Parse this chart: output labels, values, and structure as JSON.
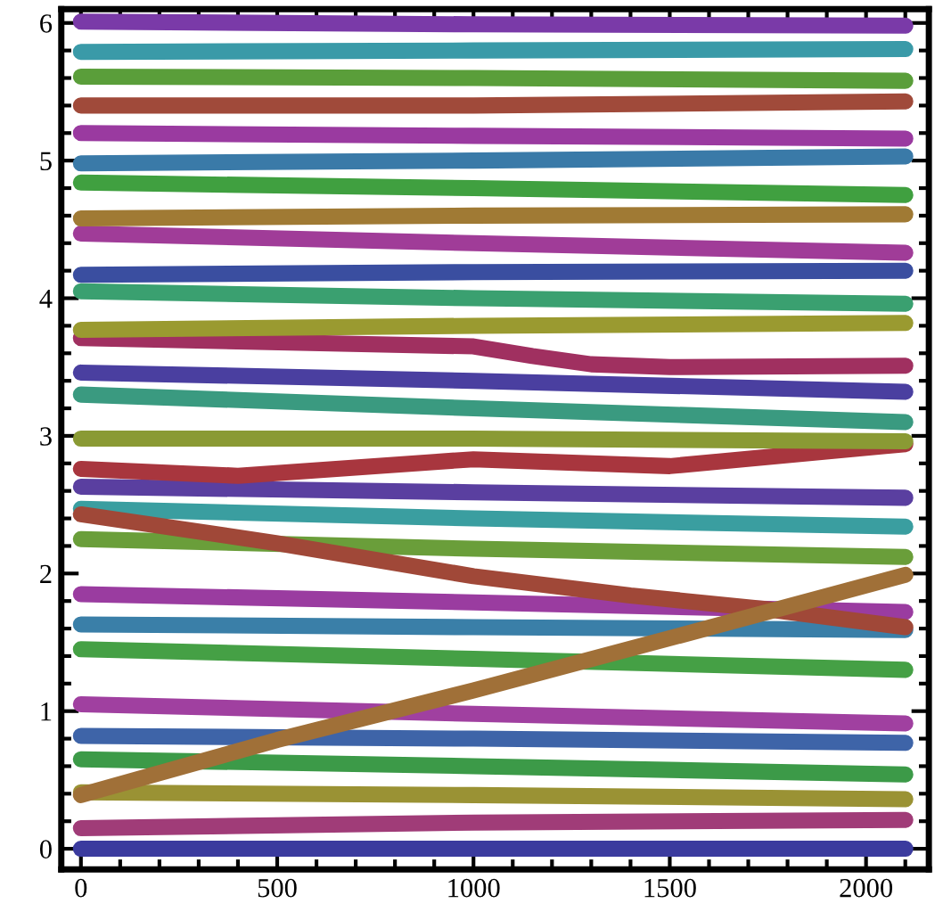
{
  "chart_data": {
    "type": "line",
    "xlim": [
      -50,
      2160
    ],
    "ylim": [
      -0.15,
      6.1
    ],
    "xticks": [
      0,
      {
        "value": 100,
        "label": null
      },
      {
        "value": 200,
        "label": null
      },
      {
        "value": 300,
        "label": null
      },
      {
        "value": 400,
        "label": null
      },
      500,
      {
        "value": 600,
        "label": null
      },
      {
        "value": 700,
        "label": null
      },
      {
        "value": 800,
        "label": null
      },
      {
        "value": 900,
        "label": null
      },
      1000,
      {
        "value": 1100,
        "label": null
      },
      {
        "value": 1200,
        "label": null
      },
      {
        "value": 1300,
        "label": null
      },
      {
        "value": 1400,
        "label": null
      },
      1500,
      {
        "value": 1600,
        "label": null
      },
      {
        "value": 1700,
        "label": null
      },
      {
        "value": 1800,
        "label": null
      },
      {
        "value": 1900,
        "label": null
      },
      2000,
      {
        "value": 2100,
        "label": null
      }
    ],
    "yticks": [
      0,
      {
        "value": 0.2,
        "label": null
      },
      {
        "value": 0.4,
        "label": null
      },
      {
        "value": 0.6,
        "label": null
      },
      {
        "value": 0.8,
        "label": null
      },
      1,
      {
        "value": 1.2,
        "label": null
      },
      {
        "value": 1.4,
        "label": null
      },
      {
        "value": 1.6,
        "label": null
      },
      {
        "value": 1.8,
        "label": null
      },
      2,
      {
        "value": 2.2,
        "label": null
      },
      {
        "value": 2.4,
        "label": null
      },
      {
        "value": 2.6,
        "label": null
      },
      {
        "value": 2.8,
        "label": null
      },
      3,
      {
        "value": 3.2,
        "label": null
      },
      {
        "value": 3.4,
        "label": null
      },
      {
        "value": 3.6,
        "label": null
      },
      {
        "value": 3.8,
        "label": null
      },
      4,
      {
        "value": 4.2,
        "label": null
      },
      {
        "value": 4.4,
        "label": null
      },
      {
        "value": 4.6,
        "label": null
      },
      {
        "value": 4.8,
        "label": null
      },
      5,
      {
        "value": 5.2,
        "label": null
      },
      {
        "value": 5.4,
        "label": null
      },
      {
        "value": 5.6,
        "label": null
      },
      {
        "value": 5.8,
        "label": null
      },
      6
    ],
    "x": [
      0,
      1000,
      2100
    ],
    "grid": false,
    "legend": false,
    "marker": "none",
    "line_style": "solid",
    "series": [
      {
        "color": "#3b3b9e",
        "values": [
          0.0,
          0.0,
          0.0
        ]
      },
      {
        "color": "#a03c78",
        "values": [
          0.15,
          0.19,
          0.21
        ]
      },
      {
        "color": "#9a9234",
        "values": [
          0.41,
          0.39,
          0.36
        ]
      },
      {
        "color": "#3c9a48",
        "values": [
          0.65,
          0.6,
          0.54
        ]
      },
      {
        "color": "#3e64a8",
        "values": [
          0.82,
          0.8,
          0.77
        ]
      },
      {
        "color": "#a040a0",
        "values": [
          1.05,
          0.98,
          0.91
        ]
      },
      {
        "color": "#45a045",
        "values": [
          1.45,
          1.38,
          1.3
        ]
      },
      {
        "color": "#3a7fa8",
        "values": [
          1.63,
          1.61,
          1.59
        ]
      },
      {
        "color": "#9a3ca0",
        "values": [
          1.85,
          1.79,
          1.72
        ]
      },
      {
        "color": "#6a9e3a",
        "values": [
          2.25,
          2.18,
          2.12
        ]
      },
      {
        "color": "#3a9ea0",
        "values": [
          2.47,
          2.4,
          2.34
        ]
      },
      {
        "color": "#5a3fa0",
        "values": [
          2.63,
          2.59,
          2.55
        ]
      },
      {
        "color": "#a8363e",
        "x": [
          0,
          400,
          1000,
          1500,
          2100
        ],
        "values": [
          2.76,
          2.71,
          2.83,
          2.78,
          2.94
        ]
      },
      {
        "color": "#8a9a34",
        "values": [
          2.98,
          2.98,
          2.96
        ]
      },
      {
        "color": "#3a9a80",
        "values": [
          3.3,
          3.2,
          3.1
        ]
      },
      {
        "color": "#4a3fa0",
        "values": [
          3.46,
          3.4,
          3.32
        ]
      },
      {
        "color": "#a03060",
        "x": [
          0,
          1000,
          1150,
          1300,
          1500,
          2100
        ],
        "values": [
          3.71,
          3.65,
          3.58,
          3.52,
          3.5,
          3.51
        ]
      },
      {
        "color": "#9a9a30",
        "values": [
          3.77,
          3.8,
          3.82
        ]
      },
      {
        "color": "#3aa070",
        "values": [
          4.05,
          4.0,
          3.96
        ]
      },
      {
        "color": "#3a4ea0",
        "values": [
          4.17,
          4.19,
          4.2
        ]
      },
      {
        "color": "#a03c98",
        "values": [
          4.47,
          4.4,
          4.33
        ]
      },
      {
        "color": "#a07a34",
        "values": [
          4.58,
          4.6,
          4.61
        ]
      },
      {
        "color": "#40a040",
        "values": [
          4.84,
          4.8,
          4.75
        ]
      },
      {
        "color": "#3a7aa8",
        "values": [
          4.98,
          5.0,
          5.03
        ]
      },
      {
        "color": "#9a3aa0",
        "values": [
          5.2,
          5.18,
          5.16
        ]
      },
      {
        "color": "#a04a3a",
        "values": [
          5.4,
          5.4,
          5.43
        ]
      },
      {
        "color": "#5a9e3a",
        "values": [
          5.61,
          5.6,
          5.58
        ]
      },
      {
        "color": "#3a9aa8",
        "values": [
          5.79,
          5.8,
          5.81
        ]
      },
      {
        "color": "#7a3aa8",
        "values": [
          6.01,
          5.99,
          5.98
        ]
      },
      {
        "color": "#a04838",
        "x": [
          0,
          500,
          1000,
          1400,
          1750,
          2100
        ],
        "values": [
          2.43,
          2.22,
          1.98,
          1.84,
          1.74,
          1.61
        ]
      },
      {
        "color": "#a07038",
        "x": [
          0,
          500,
          1000,
          1500,
          2100
        ],
        "values": [
          0.39,
          0.79,
          1.15,
          1.53,
          1.99
        ]
      }
    ]
  }
}
